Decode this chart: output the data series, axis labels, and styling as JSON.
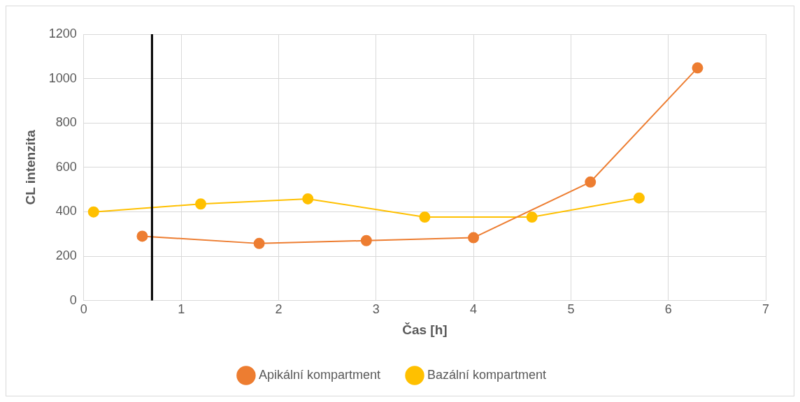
{
  "chart_data": {
    "type": "line",
    "xlabel": "Čas [h]",
    "ylabel": "CL intenzita",
    "xlim": [
      0,
      7
    ],
    "xticks": [
      0,
      1,
      2,
      3,
      4,
      5,
      6,
      7
    ],
    "ylim": [
      0,
      1200
    ],
    "yticks": [
      0,
      200,
      400,
      600,
      800,
      1000,
      1200
    ],
    "grid": true,
    "legend": "bottom",
    "marker": "circle",
    "line_style": "solid",
    "series": [
      {
        "name": "Apikální kompartment",
        "color": "#ed7d31",
        "x": [
          0.6,
          1.8,
          2.9,
          4.0,
          5.2,
          6.3
        ],
        "values": [
          290,
          257,
          270,
          283,
          534,
          1048
        ]
      },
      {
        "name": "Bazální kompartment",
        "color": "#ffc000",
        "x": [
          0.1,
          1.2,
          2.3,
          3.5,
          4.6,
          5.7
        ],
        "values": [
          399,
          435,
          458,
          376,
          376,
          462
        ]
      }
    ],
    "ref_lines": [
      {
        "axis": "x",
        "value": 0.7,
        "color": "#000000",
        "line_style": "solid"
      }
    ]
  }
}
